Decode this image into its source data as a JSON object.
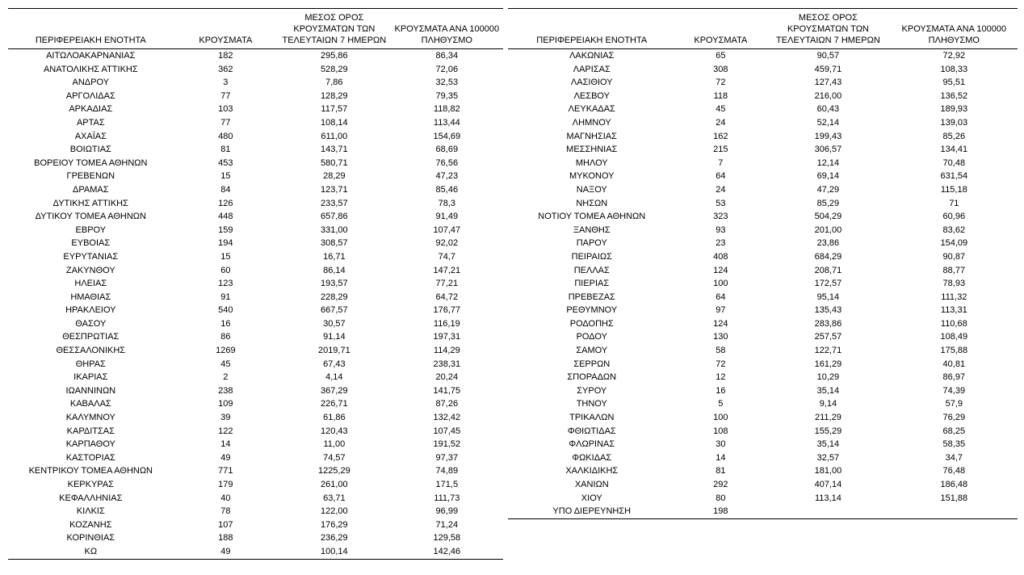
{
  "headers": {
    "region": "ΠΕΡΙΦΕΡΕΙΑΚΗ ΕΝΟΤΗΤΑ",
    "cases": "ΚΡΟΥΣΜΑΤΑ",
    "avg7days": "ΜΕΣΟΣ ΟΡΟΣ\nΚΡΟΥΣΜΑΤΩΝ ΤΩΝ\nΤΕΛΕΥΤΑΙΩΝ 7 ΗΜΕΡΩΝ",
    "per100k": "ΚΡΟΥΣΜΑΤΑ ΑΝΑ 100000\nΠΛΗΘΥΣΜΟ"
  },
  "tables": [
    {
      "rows": [
        [
          "ΑΙΤΩΛΟΑΚΑΡΝΑΝΙΑΣ",
          "182",
          "295,86",
          "86,34"
        ],
        [
          "ΑΝΑΤΟΛΙΚΗΣ ΑΤΤΙΚΗΣ",
          "362",
          "528,29",
          "72,06"
        ],
        [
          "ΑΝΔΡΟΥ",
          "3",
          "7,86",
          "32,53"
        ],
        [
          "ΑΡΓΟΛΙΔΑΣ",
          "77",
          "128,29",
          "79,35"
        ],
        [
          "ΑΡΚΑΔΙΑΣ",
          "103",
          "117,57",
          "118,82"
        ],
        [
          "ΑΡΤΑΣ",
          "77",
          "108,14",
          "113,44"
        ],
        [
          "ΑΧΑΪΑΣ",
          "480",
          "611,00",
          "154,69"
        ],
        [
          "ΒΟΙΩΤΙΑΣ",
          "81",
          "143,71",
          "68,69"
        ],
        [
          "ΒΟΡΕΙΟΥ ΤΟΜΕΑ ΑΘΗΝΩΝ",
          "453",
          "580,71",
          "76,56"
        ],
        [
          "ΓΡΕΒΕΝΩΝ",
          "15",
          "28,29",
          "47,23"
        ],
        [
          "ΔΡΑΜΑΣ",
          "84",
          "123,71",
          "85,46"
        ],
        [
          "ΔΥΤΙΚΗΣ ΑΤΤΙΚΗΣ",
          "126",
          "233,57",
          "78,3"
        ],
        [
          "ΔΥΤΙΚΟΥ ΤΟΜΕΑ ΑΘΗΝΩΝ",
          "448",
          "657,86",
          "91,49"
        ],
        [
          "ΕΒΡΟΥ",
          "159",
          "331,00",
          "107,47"
        ],
        [
          "ΕΥΒΟΙΑΣ",
          "194",
          "308,57",
          "92,02"
        ],
        [
          "ΕΥΡΥΤΑΝΙΑΣ",
          "15",
          "16,71",
          "74,7"
        ],
        [
          "ΖΑΚΥΝΘΟΥ",
          "60",
          "86,14",
          "147,21"
        ],
        [
          "ΗΛΕΙΑΣ",
          "123",
          "193,57",
          "77,21"
        ],
        [
          "ΗΜΑΘΙΑΣ",
          "91",
          "228,29",
          "64,72"
        ],
        [
          "ΗΡΑΚΛΕΙΟΥ",
          "540",
          "667,57",
          "176,77"
        ],
        [
          "ΘΑΣΟΥ",
          "16",
          "30,57",
          "116,19"
        ],
        [
          "ΘΕΣΠΡΩΤΙΑΣ",
          "86",
          "91,14",
          "197,31"
        ],
        [
          "ΘΕΣΣΑΛΟΝΙΚΗΣ",
          "1269",
          "2019,71",
          "114,29"
        ],
        [
          "ΘΗΡΑΣ",
          "45",
          "67,43",
          "238,31"
        ],
        [
          "ΙΚΑΡΙΑΣ",
          "2",
          "4,14",
          "20,24"
        ],
        [
          "ΙΩΑΝΝΙΝΩΝ",
          "238",
          "367,29",
          "141,75"
        ],
        [
          "ΚΑΒΑΛΑΣ",
          "109",
          "226,71",
          "87,26"
        ],
        [
          "ΚΑΛΥΜΝΟΥ",
          "39",
          "61,86",
          "132,42"
        ],
        [
          "ΚΑΡΔΙΤΣΑΣ",
          "122",
          "120,43",
          "107,45"
        ],
        [
          "ΚΑΡΠΑΘΟΥ",
          "14",
          "11,00",
          "191,52"
        ],
        [
          "ΚΑΣΤΟΡΙΑΣ",
          "49",
          "74,57",
          "97,37"
        ],
        [
          "ΚΕΝΤΡΙΚΟΥ ΤΟΜΕΑ ΑΘΗΝΩΝ",
          "771",
          "1225,29",
          "74,89"
        ],
        [
          "ΚΕΡΚΥΡΑΣ",
          "179",
          "261,00",
          "171,5"
        ],
        [
          "ΚΕΦΑΛΛΗΝΙΑΣ",
          "40",
          "63,71",
          "111,73"
        ],
        [
          "ΚΙΛΚΙΣ",
          "78",
          "122,00",
          "96,99"
        ],
        [
          "ΚΟΖΑΝΗΣ",
          "107",
          "176,29",
          "71,24"
        ],
        [
          "ΚΟΡΙΝΘΙΑΣ",
          "188",
          "236,29",
          "129,58"
        ],
        [
          "ΚΩ",
          "49",
          "100,14",
          "142,46"
        ]
      ]
    },
    {
      "rows": [
        [
          "ΛΑΚΩΝΙΑΣ",
          "65",
          "90,57",
          "72,92"
        ],
        [
          "ΛΑΡΙΣΑΣ",
          "308",
          "459,71",
          "108,33"
        ],
        [
          "ΛΑΣΙΘΙΟΥ",
          "72",
          "127,43",
          "95,51"
        ],
        [
          "ΛΕΣΒΟΥ",
          "118",
          "216,00",
          "136,52"
        ],
        [
          "ΛΕΥΚΑΔΑΣ",
          "45",
          "60,43",
          "189,93"
        ],
        [
          "ΛΗΜΝΟΥ",
          "24",
          "52,14",
          "139,03"
        ],
        [
          "ΜΑΓΝΗΣΙΑΣ",
          "162",
          "199,43",
          "85,26"
        ],
        [
          "ΜΕΣΣΗΝΙΑΣ",
          "215",
          "306,57",
          "134,41"
        ],
        [
          "ΜΗΛΟΥ",
          "7",
          "12,14",
          "70,48"
        ],
        [
          "ΜΥΚΟΝΟΥ",
          "64",
          "69,14",
          "631,54"
        ],
        [
          "ΝΑΞΟΥ",
          "24",
          "47,29",
          "115,18"
        ],
        [
          "ΝΗΣΩΝ",
          "53",
          "85,29",
          "71"
        ],
        [
          "ΝΟΤΙΟΥ ΤΟΜΕΑ ΑΘΗΝΩΝ",
          "323",
          "504,29",
          "60,96"
        ],
        [
          "ΞΑΝΘΗΣ",
          "93",
          "201,00",
          "83,62"
        ],
        [
          "ΠΑΡΟΥ",
          "23",
          "23,86",
          "154,09"
        ],
        [
          "ΠΕΙΡΑΙΩΣ",
          "408",
          "684,29",
          "90,87"
        ],
        [
          "ΠΕΛΛΑΣ",
          "124",
          "208,71",
          "88,77"
        ],
        [
          "ΠΙΕΡΙΑΣ",
          "100",
          "172,57",
          "78,93"
        ],
        [
          "ΠΡΕΒΕΖΑΣ",
          "64",
          "95,14",
          "111,32"
        ],
        [
          "ΡΕΘΥΜΝΟΥ",
          "97",
          "135,43",
          "113,31"
        ],
        [
          "ΡΟΔΟΠΗΣ",
          "124",
          "283,86",
          "110,68"
        ],
        [
          "ΡΟΔΟΥ",
          "130",
          "257,57",
          "108,49"
        ],
        [
          "ΣΑΜΟΥ",
          "58",
          "122,71",
          "175,88"
        ],
        [
          "ΣΕΡΡΩΝ",
          "72",
          "161,29",
          "40,81"
        ],
        [
          "ΣΠΟΡΑΔΩΝ",
          "12",
          "10,29",
          "86,97"
        ],
        [
          "ΣΥΡΟΥ",
          "16",
          "35,14",
          "74,39"
        ],
        [
          "ΤΗΝΟΥ",
          "5",
          "9,14",
          "57,9"
        ],
        [
          "ΤΡΙΚΑΛΩΝ",
          "100",
          "211,29",
          "76,29"
        ],
        [
          "ΦΘΙΩΤΙΔΑΣ",
          "108",
          "155,29",
          "68,25"
        ],
        [
          "ΦΛΩΡΙΝΑΣ",
          "30",
          "35,14",
          "58,35"
        ],
        [
          "ΦΩΚΙΔΑΣ",
          "14",
          "32,57",
          "34,7"
        ],
        [
          "ΧΑΛΚΙΔΙΚΗΣ",
          "81",
          "181,00",
          "76,48"
        ],
        [
          "ΧΑΝΙΩΝ",
          "292",
          "407,14",
          "186,48"
        ],
        [
          "ΧΙΟΥ",
          "80",
          "113,14",
          "151,88"
        ],
        [
          "ΥΠΟ ΔΙΕΡΕΥΝΗΣΗ",
          "198",
          "",
          ""
        ]
      ]
    }
  ]
}
